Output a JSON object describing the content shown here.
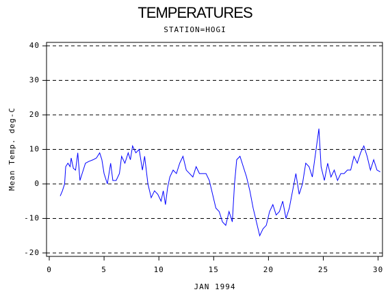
{
  "chart_data": {
    "type": "line",
    "title": "TEMPERATURES",
    "subtitle": "STATION=HOGI",
    "x_label": "JAN 1994",
    "y_label": "Mean Temp. deg-C",
    "xlim": [
      -0.25,
      30.4
    ],
    "xticks": [
      0,
      5,
      10,
      15,
      20,
      25,
      30
    ],
    "ylim": [
      -21,
      41
    ],
    "yticks": [
      -20,
      -10,
      0,
      10,
      20,
      30,
      40
    ],
    "grid": true,
    "series": [
      {
        "color": "#0000ff",
        "x": [
          1,
          1.2,
          1.4,
          1.5,
          1.7,
          1.9,
          2,
          2.2,
          2.4,
          2.6,
          2.8,
          3,
          3.3,
          3.6,
          4,
          4.3,
          4.6,
          4.8,
          5,
          5.3,
          5.6,
          5.8,
          6.1,
          6.4,
          6.6,
          6.9,
          7.2,
          7.4,
          7.6,
          7.9,
          8.2,
          8.5,
          8.7,
          9,
          9.3,
          9.6,
          9.9,
          10.2,
          10.4,
          10.6,
          10.8,
          11,
          11.3,
          11.6,
          11.9,
          12.2,
          12.5,
          12.8,
          13.1,
          13.4,
          13.7,
          14,
          14.3,
          14.6,
          14.9,
          15.2,
          15.5,
          15.8,
          16.1,
          16.4,
          16.7,
          16.9,
          17.1,
          17.4,
          17.7,
          18,
          18.3,
          18.6,
          18.9,
          19.2,
          19.5,
          19.8,
          20.1,
          20.4,
          20.7,
          21,
          21.3,
          21.6,
          21.9,
          22.2,
          22.5,
          22.8,
          23.1,
          23.4,
          23.7,
          24,
          24.3,
          24.6,
          24.8,
          25.1,
          25.4,
          25.7,
          26,
          26.3,
          26.6,
          26.9,
          27.2,
          27.5,
          27.8,
          28.1,
          28.4,
          28.7,
          29,
          29.3,
          29.6,
          29.9,
          30.2
        ],
        "values": [
          -3.5,
          -2,
          0,
          5,
          6,
          5,
          7.5,
          4.5,
          4,
          9,
          1,
          3,
          6,
          6.5,
          7,
          7.5,
          9,
          7,
          3,
          0,
          6,
          1,
          1,
          3,
          8,
          6,
          9,
          7,
          11,
          9,
          10,
          4,
          8,
          0,
          -4,
          -2,
          -3,
          -5,
          -2,
          -6,
          -1,
          2,
          4,
          3,
          6,
          8,
          4,
          3,
          2,
          5,
          3,
          3,
          3,
          1,
          -3,
          -7,
          -8,
          -11,
          -12,
          -8,
          -11,
          0,
          7,
          8,
          5,
          2,
          -2,
          -7,
          -11,
          -15,
          -13,
          -12,
          -8,
          -6,
          -9,
          -8,
          -5,
          -10,
          -7,
          -2,
          3,
          -3,
          0,
          6,
          5,
          2,
          9,
          16,
          5,
          1,
          6,
          2,
          4,
          1,
          3,
          3,
          4,
          4,
          8,
          6,
          9,
          11,
          8,
          4,
          7,
          4,
          3.5
        ]
      }
    ]
  }
}
